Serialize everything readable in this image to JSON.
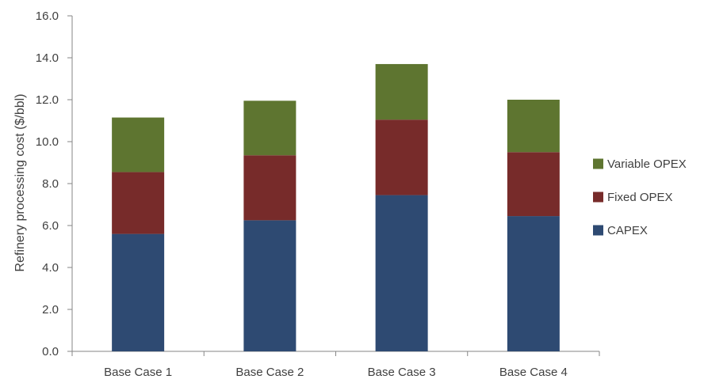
{
  "chart_data": {
    "type": "bar",
    "stacked": true,
    "categories": [
      "Base Case 1",
      "Base Case 2",
      "Base Case 3",
      "Base Case 4"
    ],
    "series": [
      {
        "name": "CAPEX",
        "values": [
          5.6,
          6.25,
          7.45,
          6.45
        ],
        "color": "#2E4A72"
      },
      {
        "name": "Fixed OPEX",
        "values": [
          2.95,
          3.1,
          3.6,
          3.05
        ],
        "color": "#772B2A"
      },
      {
        "name": "Variable OPEX",
        "values": [
          2.6,
          2.6,
          2.65,
          2.5
        ],
        "color": "#5E7530"
      }
    ],
    "legend_order": [
      "Variable OPEX",
      "Fixed OPEX",
      "CAPEX"
    ],
    "title": "",
    "xlabel": "",
    "ylabel": "Refinery processing cost ($/bbl)",
    "ylim": [
      0,
      16
    ],
    "yticks": [
      "0.0",
      "2.0",
      "4.0",
      "6.0",
      "8.0",
      "10.0",
      "12.0",
      "14.0",
      "16.0"
    ],
    "grid": false,
    "legend_position": "right"
  }
}
